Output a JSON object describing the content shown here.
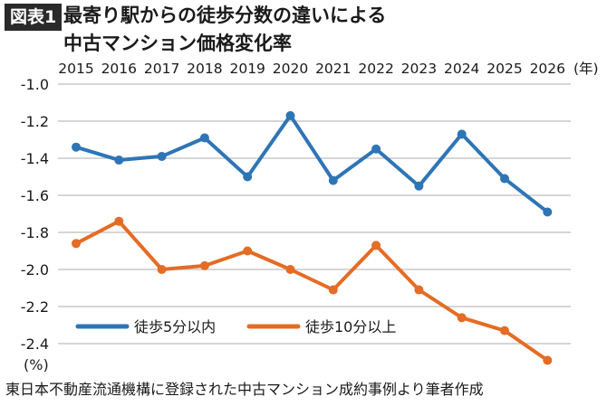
{
  "header": {
    "badge": "図表1",
    "title_line1": "最寄り駅からの徒歩分数の違いによる",
    "title_line2": "中古マンション価格変化率"
  },
  "source": "東日本不動産流通機構に登録された中古マンション成約事例より筆者作成",
  "chart_data": {
    "type": "line",
    "x": [
      2015,
      2016,
      2017,
      2018,
      2019,
      2020,
      2021,
      2022,
      2023,
      2024,
      2025,
      2026
    ],
    "x_tick_labels": [
      "2015",
      "2016",
      "2017",
      "2018",
      "2019",
      "2020",
      "2021",
      "2022",
      "2023",
      "2024",
      "2025",
      "2026"
    ],
    "x_unit": "(年)",
    "y_unit": "(%)",
    "y_ticks": [
      -1.0,
      -1.2,
      -1.4,
      -1.6,
      -1.8,
      -2.0,
      -2.2,
      -2.4
    ],
    "y_tick_labels": [
      "-1.0",
      "-1.2",
      "-1.4",
      "-1.6",
      "-1.8",
      "-2.0",
      "-2.2",
      "-2.4"
    ],
    "ylim": [
      -2.5,
      -1.0
    ],
    "x_axis_position": "top",
    "grid": true,
    "legend_position": "bottom-left",
    "series": [
      {
        "name": "徒歩5分以内",
        "color": "#2e75b6",
        "values": [
          -1.34,
          -1.41,
          -1.39,
          -1.29,
          -1.5,
          -1.17,
          -1.52,
          -1.35,
          -1.55,
          -1.27,
          -1.51,
          -1.69
        ]
      },
      {
        "name": "徒歩10分以上",
        "color": "#e46c24",
        "values": [
          -1.86,
          -1.74,
          -2.0,
          -1.98,
          -1.9,
          -2.0,
          -2.11,
          -1.87,
          -2.11,
          -2.26,
          -2.33,
          -2.49
        ]
      }
    ]
  }
}
